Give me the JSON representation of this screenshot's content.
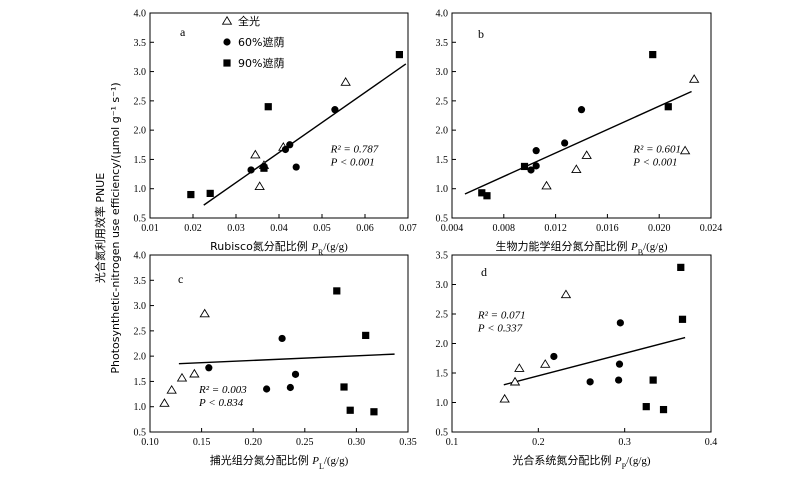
{
  "y_axis_label": "光合氮利用效率 PNUE",
  "y_axis_label_en": "Photosynthetic-nitrogen use efficiency/(μmol g⁻¹ s⁻¹)",
  "legend": [
    {
      "name": "全光",
      "marker": "triangle-open"
    },
    {
      "name": "60%遮荫",
      "marker": "circle-filled"
    },
    {
      "name": "90%遮荫",
      "marker": "square-filled"
    }
  ],
  "chart_data": [
    {
      "type": "scatter",
      "panel": "a",
      "xlabel_text": "Rubisco氮分配比例 ",
      "xlabel_var": "P",
      "xlabel_sub": "R",
      "xlabel_unit": "/(g/g)",
      "xlim": [
        0.01,
        0.07
      ],
      "xticks": [
        0.01,
        0.02,
        0.03,
        0.04,
        0.05,
        0.06,
        0.07
      ],
      "xtick_labels": [
        "0.01",
        "0.02",
        "0.03",
        "0.04",
        "0.05",
        "0.06",
        "0.07"
      ],
      "ylim": [
        0.5,
        4.0
      ],
      "yticks": [
        0.5,
        1.0,
        1.5,
        2.0,
        2.5,
        3.0,
        3.5,
        4.0
      ],
      "ytick_labels": [
        "0.5",
        "1.0",
        "1.5",
        "2.0",
        "2.5",
        "3.0",
        "3.5",
        "4.0"
      ],
      "r2_text": "R² = 0.787",
      "p_text": "P < 0.001",
      "fit": {
        "x": [
          0.0225,
          0.0695
        ],
        "y": [
          0.72,
          3.13
        ]
      },
      "series": [
        {
          "name": "全光",
          "points": [
            [
              0.0345,
              1.58
            ],
            [
              0.0355,
              1.04
            ],
            [
              0.0365,
              1.4
            ],
            [
              0.041,
              1.71
            ],
            [
              0.0555,
              2.82
            ]
          ]
        },
        {
          "name": "60%遮荫",
          "points": [
            [
              0.0335,
              1.32
            ],
            [
              0.0365,
              1.38
            ],
            [
              0.0415,
              1.67
            ],
            [
              0.0425,
              1.75
            ],
            [
              0.044,
              1.37
            ],
            [
              0.053,
              2.35
            ]
          ]
        },
        {
          "name": "90%遮荫",
          "points": [
            [
              0.0195,
              0.9
            ],
            [
              0.024,
              0.92
            ],
            [
              0.0365,
              1.35
            ],
            [
              0.0375,
              2.4
            ],
            [
              0.068,
              3.29
            ]
          ]
        }
      ]
    },
    {
      "type": "scatter",
      "panel": "b",
      "xlabel_text": "生物力能学组分氮分配比例 ",
      "xlabel_var": "P",
      "xlabel_sub": "B",
      "xlabel_unit": "/(g/g)",
      "xlim": [
        0.004,
        0.024
      ],
      "xticks": [
        0.004,
        0.008,
        0.012,
        0.016,
        0.02,
        0.024
      ],
      "xtick_labels": [
        "0.004",
        "0.008",
        "0.012",
        "0.016",
        "0.020",
        "0.024"
      ],
      "ylim": [
        0.5,
        4.0
      ],
      "yticks": [
        0.5,
        1.0,
        1.5,
        2.0,
        2.5,
        3.0,
        3.5,
        4.0
      ],
      "ytick_labels": [
        "0.5",
        "1.0",
        "1.5",
        "2.0",
        "2.5",
        "3.0",
        "3.5",
        "4.0"
      ],
      "r2_text": "R² = 0.601",
      "p_text": "P < 0.001",
      "fit": {
        "x": [
          0.005,
          0.0225
        ],
        "y": [
          0.91,
          2.66
        ]
      },
      "series": [
        {
          "name": "全光",
          "points": [
            [
              0.0113,
              1.05
            ],
            [
              0.0136,
              1.33
            ],
            [
              0.0144,
              1.57
            ],
            [
              0.022,
              1.65
            ],
            [
              0.0227,
              2.87
            ]
          ]
        },
        {
          "name": "60%遮荫",
          "points": [
            [
              0.0101,
              1.32
            ],
            [
              0.0105,
              1.39
            ],
            [
              0.0105,
              1.65
            ],
            [
              0.0127,
              1.78
            ],
            [
              0.014,
              2.35
            ]
          ]
        },
        {
          "name": "90%遮荫",
          "points": [
            [
              0.0063,
              0.93
            ],
            [
              0.0067,
              0.88
            ],
            [
              0.0096,
              1.38
            ],
            [
              0.0195,
              3.29
            ],
            [
              0.0207,
              2.4
            ]
          ]
        }
      ]
    },
    {
      "type": "scatter",
      "panel": "c",
      "xlabel_text": "捕光组分氮分配比例 ",
      "xlabel_var": "P",
      "xlabel_sub": "L",
      "xlabel_unit": "/(g/g)",
      "xlim": [
        0.1,
        0.35
      ],
      "xticks": [
        0.1,
        0.15,
        0.2,
        0.25,
        0.3,
        0.35
      ],
      "xtick_labels": [
        "0.10",
        "0.15",
        "0.20",
        "0.25",
        "0.30",
        "0.35"
      ],
      "ylim": [
        0.5,
        4.0
      ],
      "yticks": [
        0.5,
        1.0,
        1.5,
        2.0,
        2.5,
        3.0,
        3.5,
        4.0
      ],
      "ytick_labels": [
        "0.5",
        "1.0",
        "1.5",
        "2.0",
        "2.5",
        "3.0",
        "3.5",
        "4.0"
      ],
      "r2_text": "R² = 0.003",
      "p_text": "P < 0.834",
      "fit": {
        "x": [
          0.128,
          0.337
        ],
        "y": [
          1.85,
          2.04
        ]
      },
      "series": [
        {
          "name": "全光",
          "points": [
            [
              0.114,
              1.07
            ],
            [
              0.121,
              1.33
            ],
            [
              0.131,
              1.57
            ],
            [
              0.143,
              1.65
            ],
            [
              0.153,
              2.84
            ]
          ]
        },
        {
          "name": "60%遮荫",
          "points": [
            [
              0.157,
              1.77
            ],
            [
              0.213,
              1.35
            ],
            [
              0.228,
              2.35
            ],
            [
              0.236,
              1.38
            ],
            [
              0.241,
              1.64
            ]
          ]
        },
        {
          "name": "90%遮荫",
          "points": [
            [
              0.281,
              3.29
            ],
            [
              0.288,
              1.39
            ],
            [
              0.294,
              0.93
            ],
            [
              0.309,
              2.41
            ],
            [
              0.317,
              0.9
            ]
          ]
        }
      ]
    },
    {
      "type": "scatter",
      "panel": "d",
      "xlabel_text": "光合系统氮分配比例 ",
      "xlabel_var": "P",
      "xlabel_sub": "P",
      "xlabel_unit": "/(g/g)",
      "xlim": [
        0.1,
        0.4
      ],
      "xticks": [
        0.1,
        0.2,
        0.3,
        0.4
      ],
      "xtick_labels": [
        "0.1",
        "0.2",
        "0.3",
        "0.4"
      ],
      "ylim": [
        0.5,
        3.5
      ],
      "yticks": [
        0.5,
        1.0,
        1.5,
        2.0,
        2.5,
        3.0,
        3.5
      ],
      "ytick_labels": [
        "0.5",
        "1.0",
        "1.5",
        "2.0",
        "2.5",
        "3.0",
        "3.5"
      ],
      "r2_text": "R² = 0.071",
      "p_text": "P < 0.337",
      "fit": {
        "x": [
          0.16,
          0.37
        ],
        "y": [
          1.3,
          2.1
        ]
      },
      "series": [
        {
          "name": "全光",
          "points": [
            [
              0.161,
              1.06
            ],
            [
              0.173,
              1.35
            ],
            [
              0.178,
              1.58
            ],
            [
              0.208,
              1.65
            ],
            [
              0.232,
              2.83
            ]
          ]
        },
        {
          "name": "60%遮荫",
          "points": [
            [
              0.218,
              1.78
            ],
            [
              0.26,
              1.35
            ],
            [
              0.293,
              1.38
            ],
            [
              0.294,
              1.65
            ],
            [
              0.295,
              2.35
            ]
          ]
        },
        {
          "name": "90%遮荫",
          "points": [
            [
              0.325,
              0.93
            ],
            [
              0.333,
              1.38
            ],
            [
              0.345,
              0.88
            ],
            [
              0.365,
              3.29
            ],
            [
              0.367,
              2.41
            ]
          ]
        }
      ]
    }
  ]
}
